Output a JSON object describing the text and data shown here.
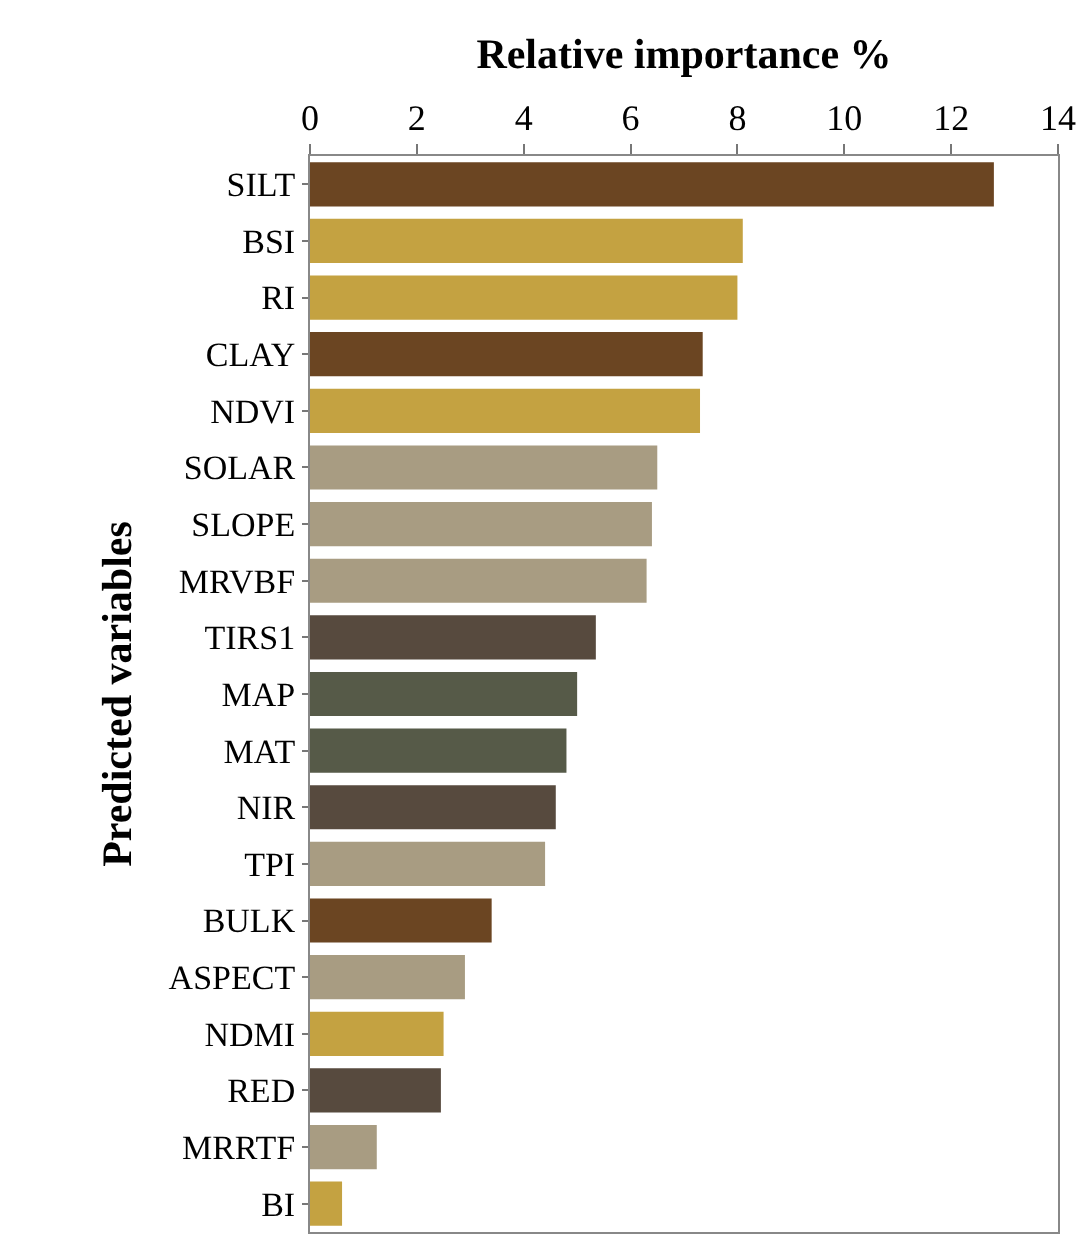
{
  "chart_data": {
    "type": "bar",
    "orientation": "horizontal",
    "xlabel": "Relative importance %",
    "ylabel": "Predicted variables",
    "categories": [
      "SILT",
      "BSI",
      "RI",
      "CLAY",
      "NDVI",
      "SOLAR",
      "SLOPE",
      "MRVBF",
      "TIRS1",
      "MAP",
      "MAT",
      "NIR",
      "TPI",
      "BULK",
      "ASPECT",
      "NDMI",
      "RED",
      "MRRTF",
      "BI"
    ],
    "values": [
      12.8,
      8.1,
      8.0,
      7.35,
      7.3,
      6.5,
      6.4,
      6.3,
      5.35,
      5.0,
      4.8,
      4.6,
      4.4,
      3.4,
      2.9,
      2.5,
      2.45,
      1.25,
      0.6
    ],
    "colors": [
      "#6b4522",
      "#c4a241",
      "#c4a241",
      "#6b4522",
      "#c4a241",
      "#a89c82",
      "#a89c82",
      "#a89c82",
      "#574a3e",
      "#565a48",
      "#565a48",
      "#574a3e",
      "#a89c82",
      "#6b4522",
      "#a89c82",
      "#c4a241",
      "#574a3e",
      "#a89c82",
      "#c4a241"
    ],
    "xlim": [
      0,
      14
    ],
    "xticks": [
      0,
      2,
      4,
      6,
      8,
      10,
      12,
      14
    ],
    "grid": false
  }
}
